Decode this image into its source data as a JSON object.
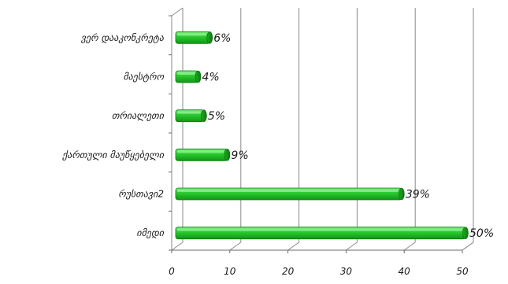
{
  "chart_data": {
    "type": "bar",
    "orientation": "horizontal",
    "categories": [
      "ვერ დააკონკრეტა",
      "მაესტრო",
      "თრიალეთი",
      "ქართული მაუწყებელი",
      "რუსთავი2",
      "იმედი"
    ],
    "values": [
      6,
      4,
      5,
      9,
      39,
      50
    ],
    "value_labels": [
      "6%",
      "4%",
      "5%",
      "9%",
      "39%",
      "50%"
    ],
    "xlim": [
      0,
      50
    ],
    "x_ticks": [
      "0",
      "10",
      "20",
      "30",
      "40",
      "50"
    ],
    "grid": true,
    "legend": "none",
    "title": "",
    "xlabel": "",
    "ylabel": "",
    "colors": {
      "bar_fill": "#22c72a",
      "bar_dark": "#118a16",
      "bar_light": "#6be86f",
      "grid": "#808080"
    }
  }
}
